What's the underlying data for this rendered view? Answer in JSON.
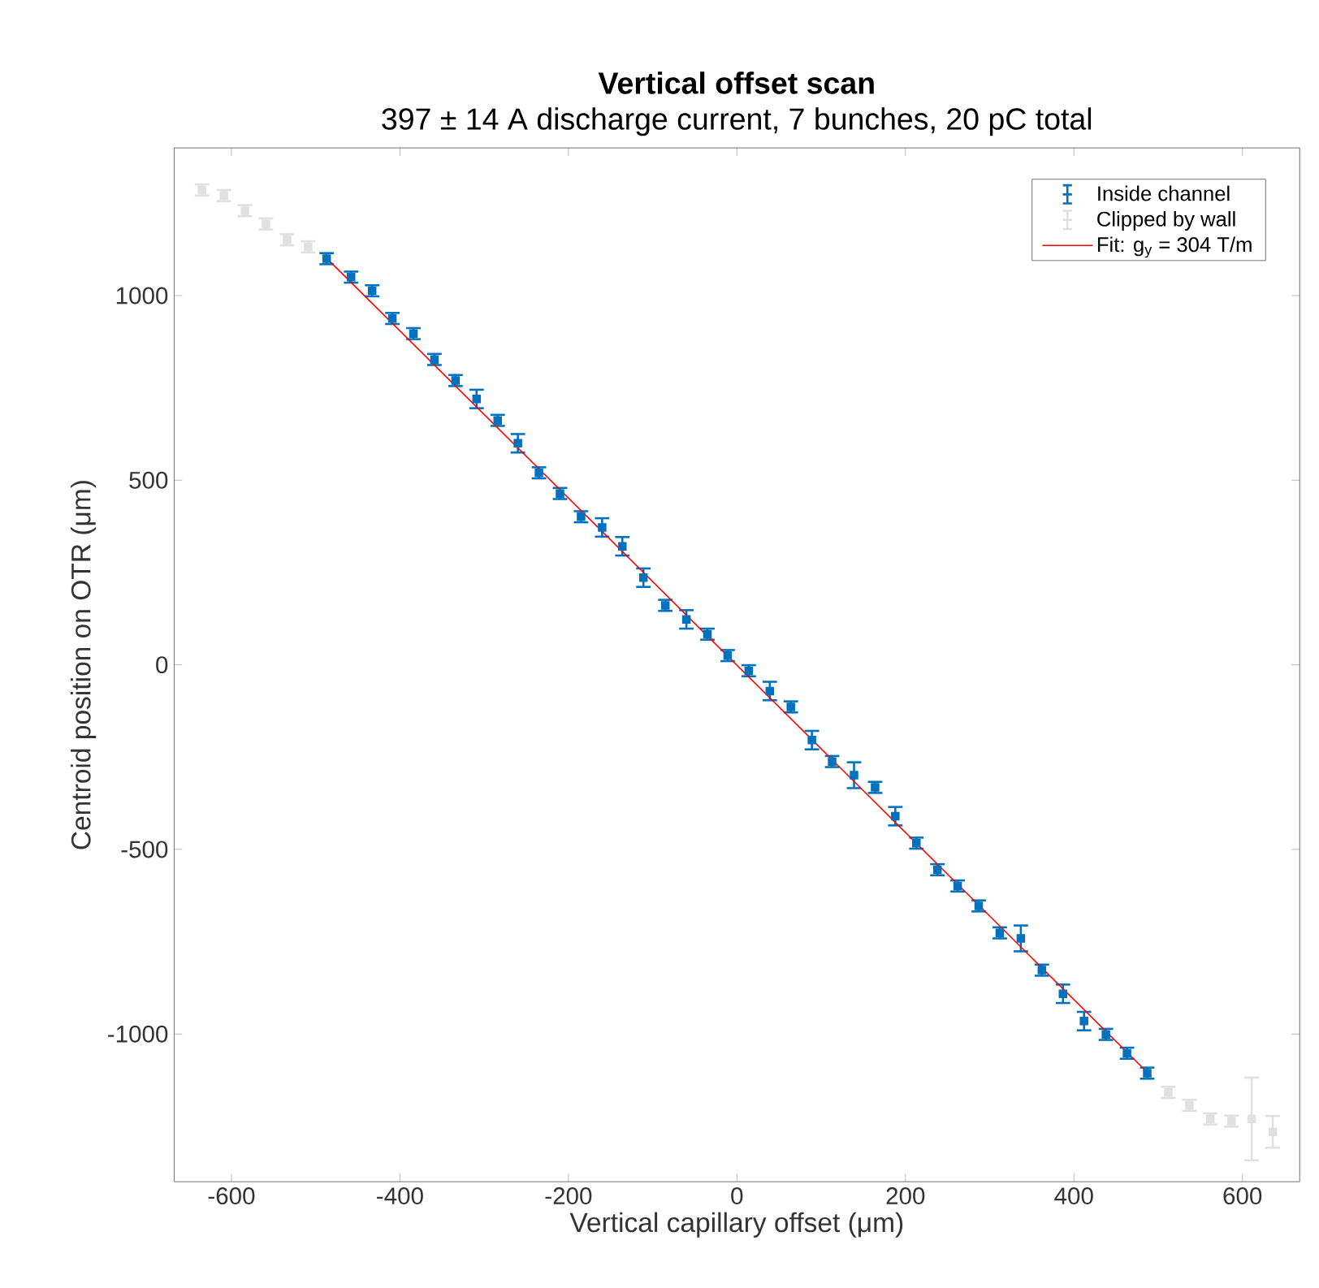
{
  "chart_data": {
    "type": "scatter",
    "title": "Vertical offset scan",
    "subtitle": "397 ± 14 A discharge current, 7 bunches, 20 pC total",
    "xlabel": "Vertical capillary offset (μm)",
    "ylabel": "Centroid position on OTR (μm)",
    "xlim": [
      -668,
      668
    ],
    "ylim": [
      -1400,
      1400
    ],
    "xticks": [
      -600,
      -400,
      -200,
      0,
      200,
      400,
      600
    ],
    "yticks": [
      -1000,
      -500,
      0,
      500,
      1000
    ],
    "legend": "top right",
    "series": [
      {
        "name": "Inside channel",
        "color": "#0072bd",
        "marker": "square",
        "x": [
          -487,
          -458,
          -433,
          -409,
          -384,
          -359,
          -334,
          -309,
          -284,
          -260,
          -235,
          -210,
          -185,
          -160,
          -136,
          -111,
          -85,
          -60,
          -35,
          -11,
          14,
          39,
          64,
          89,
          113,
          139,
          164,
          188,
          213,
          238,
          262,
          287,
          312,
          337,
          362,
          387,
          412,
          438,
          463,
          487
        ],
        "values": [
          1100,
          1050,
          1013,
          938,
          897,
          827,
          770,
          720,
          662,
          600,
          520,
          464,
          401,
          372,
          321,
          236,
          161,
          123,
          83,
          25,
          -16,
          -71,
          -114,
          -204,
          -262,
          -299,
          -332,
          -410,
          -483,
          -555,
          -599,
          -653,
          -726,
          -741,
          -827,
          -891,
          -965,
          -1001,
          -1052,
          -1106
        ],
        "errors": [
          15,
          15,
          15,
          15,
          15,
          15,
          15,
          25,
          15,
          25,
          15,
          15,
          15,
          25,
          25,
          25,
          15,
          25,
          15,
          15,
          15,
          25,
          15,
          25,
          15,
          35,
          15,
          25,
          15,
          15,
          15,
          15,
          15,
          35,
          15,
          25,
          25,
          15,
          15,
          15
        ]
      },
      {
        "name": "Clipped by wall",
        "color": "#e0e0e0",
        "marker": "square",
        "x": [
          -635,
          -609,
          -584,
          -559,
          -534,
          -509,
          512,
          537,
          562,
          587,
          611,
          636
        ],
        "values": [
          1286,
          1271,
          1230,
          1194,
          1151,
          1132,
          -1158,
          -1193,
          -1230,
          -1236,
          -1230,
          -1265
        ],
        "errors": [
          15,
          15,
          15,
          15,
          15,
          15,
          15,
          15,
          15,
          15,
          112,
          43
        ]
      },
      {
        "name": "Fit: g$_{y}$ = 304 T/m",
        "color": "#ff0000",
        "type": "line",
        "marker": "none",
        "x": [
          -490,
          492
        ],
        "values": [
          1108,
          -1115
        ]
      }
    ]
  }
}
